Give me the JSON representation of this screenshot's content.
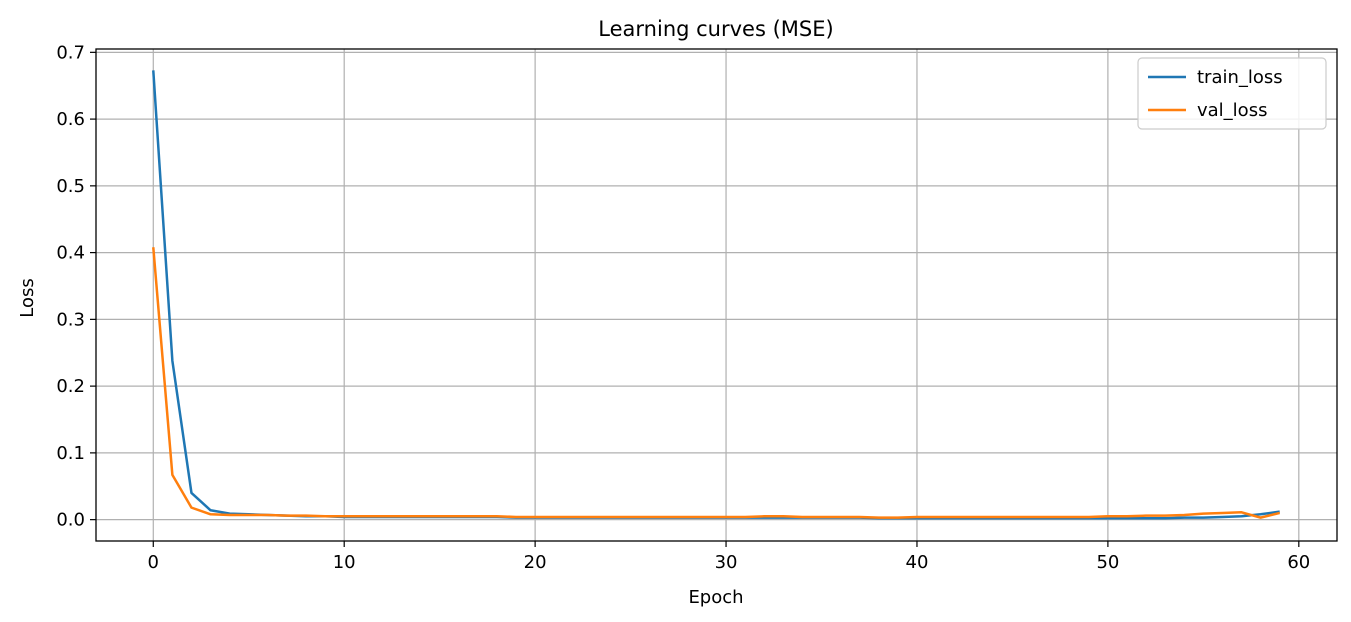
{
  "chart_data": {
    "type": "line",
    "title": "Learning curves (MSE)",
    "xlabel": "Epoch",
    "ylabel": "Loss",
    "xlim": [
      -3,
      62
    ],
    "ylim": [
      -0.032,
      0.705
    ],
    "xticks": [
      0,
      10,
      20,
      30,
      40,
      50,
      60
    ],
    "xtick_labels": [
      "0",
      "10",
      "20",
      "30",
      "40",
      "50",
      "60"
    ],
    "yticks": [
      0.0,
      0.1,
      0.2,
      0.3,
      0.4,
      0.5,
      0.6,
      0.7
    ],
    "ytick_labels": [
      "0.0",
      "0.1",
      "0.2",
      "0.3",
      "0.4",
      "0.5",
      "0.6",
      "0.7"
    ],
    "grid": true,
    "legend_position": "top-right",
    "x": [
      0,
      1,
      2,
      3,
      4,
      5,
      6,
      7,
      8,
      9,
      10,
      11,
      12,
      13,
      14,
      15,
      16,
      17,
      18,
      19,
      20,
      21,
      22,
      23,
      24,
      25,
      26,
      27,
      28,
      29,
      30,
      31,
      32,
      33,
      34,
      35,
      36,
      37,
      38,
      39,
      40,
      41,
      42,
      43,
      44,
      45,
      46,
      47,
      48,
      49,
      50,
      51,
      52,
      53,
      54,
      55,
      56,
      57,
      58,
      59
    ],
    "series": [
      {
        "name": "train_loss",
        "color": "#1f77b4",
        "values": [
          0.673,
          0.238,
          0.04,
          0.014,
          0.009,
          0.008,
          0.007,
          0.006,
          0.005,
          0.005,
          0.004,
          0.004,
          0.004,
          0.004,
          0.004,
          0.004,
          0.004,
          0.004,
          0.004,
          0.003,
          0.003,
          0.003,
          0.003,
          0.003,
          0.003,
          0.003,
          0.003,
          0.003,
          0.003,
          0.003,
          0.003,
          0.003,
          0.003,
          0.003,
          0.003,
          0.003,
          0.003,
          0.003,
          0.002,
          0.002,
          0.002,
          0.002,
          0.002,
          0.002,
          0.002,
          0.002,
          0.002,
          0.002,
          0.002,
          0.002,
          0.002,
          0.002,
          0.002,
          0.002,
          0.003,
          0.003,
          0.004,
          0.005,
          0.008,
          0.012
        ]
      },
      {
        "name": "val_loss",
        "color": "#ff7f0e",
        "values": [
          0.408,
          0.067,
          0.018,
          0.008,
          0.007,
          0.007,
          0.007,
          0.006,
          0.006,
          0.005,
          0.005,
          0.005,
          0.005,
          0.005,
          0.005,
          0.005,
          0.005,
          0.005,
          0.005,
          0.004,
          0.004,
          0.004,
          0.004,
          0.004,
          0.004,
          0.004,
          0.004,
          0.004,
          0.004,
          0.004,
          0.004,
          0.004,
          0.005,
          0.005,
          0.004,
          0.004,
          0.004,
          0.004,
          0.003,
          0.003,
          0.004,
          0.004,
          0.004,
          0.004,
          0.004,
          0.004,
          0.004,
          0.004,
          0.004,
          0.004,
          0.005,
          0.005,
          0.006,
          0.006,
          0.007,
          0.009,
          0.01,
          0.011,
          0.003,
          0.01
        ]
      }
    ]
  }
}
